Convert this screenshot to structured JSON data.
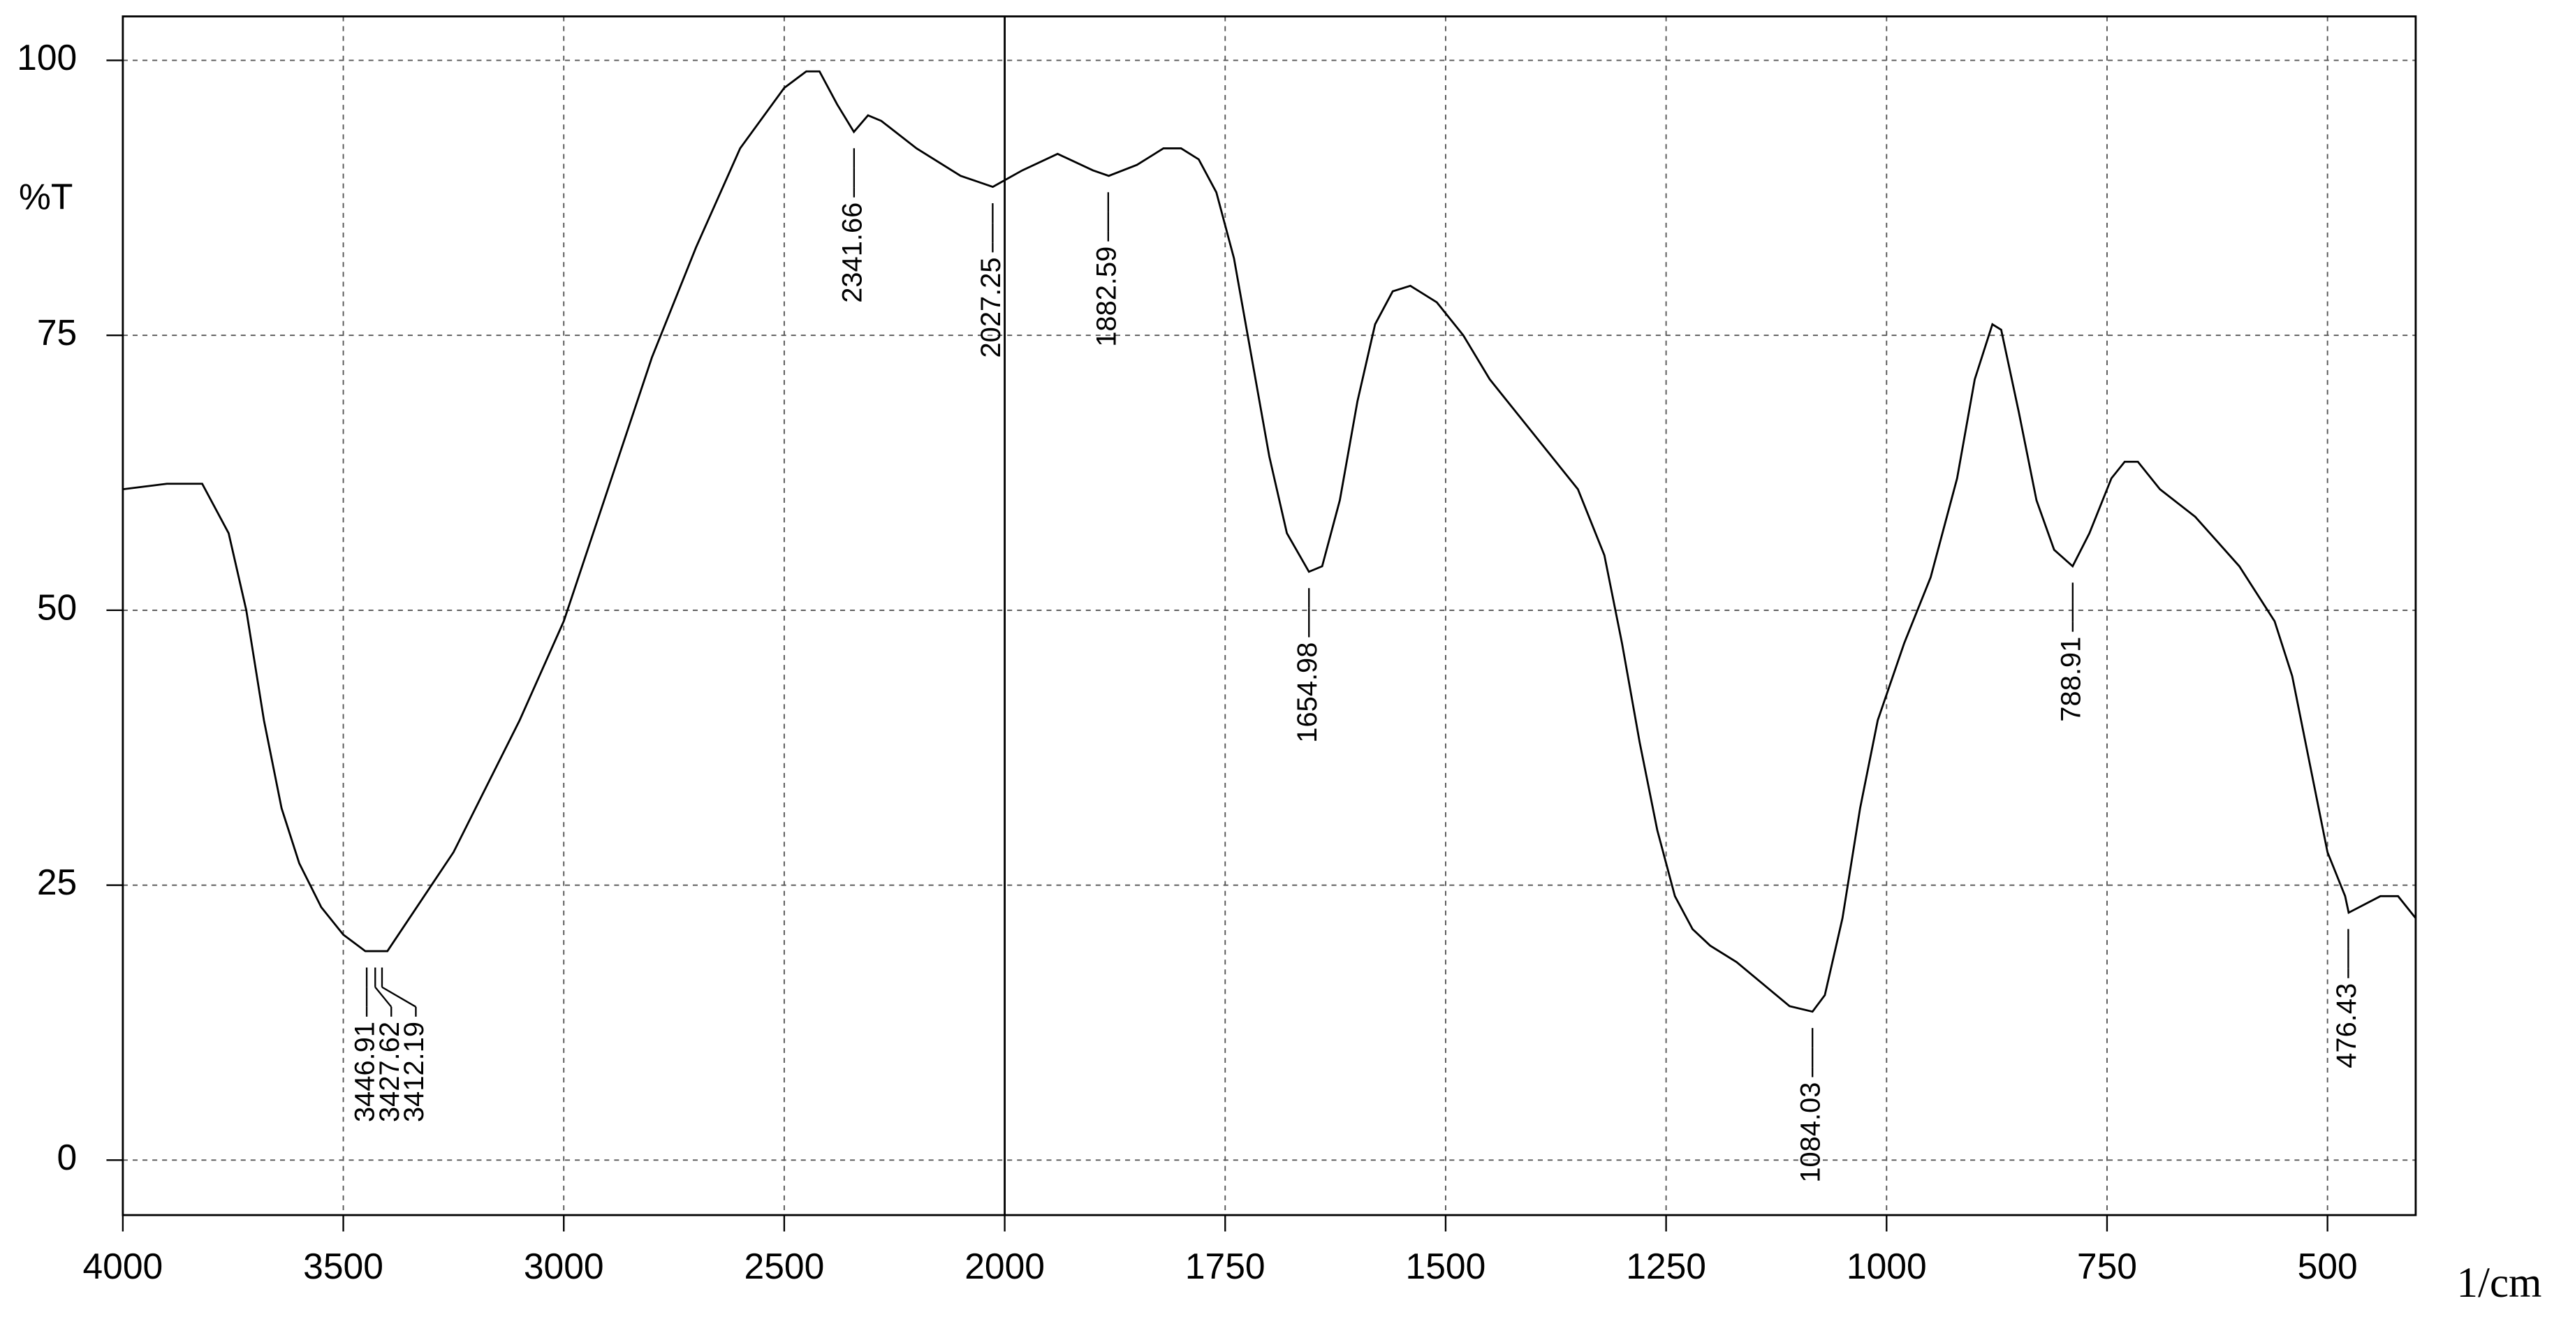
{
  "chart_data": {
    "type": "line",
    "y_label": "%T",
    "x_label": "1/cm",
    "xlim": [
      4000,
      400
    ],
    "x_scale_break": 2000,
    "ylim": [
      -5,
      104
    ],
    "xticks": [
      4000,
      3500,
      3000,
      2500,
      2000,
      1750,
      1500,
      1250,
      1000,
      750,
      500
    ],
    "yticks": [
      0,
      25,
      50,
      75,
      100
    ],
    "grid": true,
    "series": [
      {
        "color": "#000000",
        "x": [
          4000,
          3900,
          3820,
          3760,
          3720,
          3680,
          3640,
          3600,
          3550,
          3500,
          3450,
          3400,
          3350,
          3300,
          3250,
          3200,
          3100,
          3000,
          2900,
          2800,
          2700,
          2600,
          2500,
          2450,
          2420,
          2380,
          2342,
          2310,
          2280,
          2200,
          2100,
          2027,
          1980,
          1940,
          1900,
          1882,
          1850,
          1820,
          1800,
          1780,
          1760,
          1740,
          1720,
          1700,
          1680,
          1655,
          1640,
          1620,
          1600,
          1580,
          1560,
          1540,
          1510,
          1480,
          1450,
          1400,
          1350,
          1320,
          1300,
          1280,
          1260,
          1240,
          1220,
          1200,
          1170,
          1140,
          1110,
          1084,
          1070,
          1050,
          1030,
          1010,
          980,
          950,
          920,
          900,
          880,
          870,
          850,
          830,
          810,
          789,
          770,
          745,
          730,
          715,
          690,
          650,
          600,
          560,
          540,
          520,
          500,
          480,
          476,
          440,
          420,
          400
        ],
        "values": [
          61,
          61.5,
          61.5,
          57,
          50,
          40,
          32,
          27,
          23,
          20.5,
          19,
          19,
          22,
          25,
          28,
          32,
          40,
          49,
          61,
          73,
          83,
          92,
          97.5,
          99,
          99,
          96,
          93.5,
          95,
          94.5,
          92,
          89.5,
          88.5,
          90,
          91.5,
          90,
          89.5,
          90.5,
          92,
          92,
          91,
          88,
          82,
          73,
          64,
          57,
          53.5,
          54,
          60,
          69,
          76,
          79,
          79.5,
          78,
          75,
          71,
          66,
          61,
          55,
          47,
          38,
          30,
          24,
          21,
          19.5,
          18,
          16,
          14,
          13.5,
          15,
          22,
          32,
          40,
          47,
          53,
          62,
          71,
          76,
          75.5,
          68,
          60,
          55.5,
          54,
          57,
          62,
          63.5,
          63.5,
          61,
          58.5,
          54,
          49,
          44,
          36,
          28,
          24,
          22.5,
          24,
          24,
          22
        ]
      }
    ],
    "peaks": {
      "x": [
        3446.91,
        3427.62,
        3412.19,
        2341.66,
        2027.25,
        1882.59,
        1654.98,
        1084.03,
        788.91,
        476.43
      ],
      "y": [
        19,
        19,
        19,
        93.5,
        88.5,
        89.5,
        53.5,
        13.5,
        54,
        22.5
      ]
    }
  }
}
